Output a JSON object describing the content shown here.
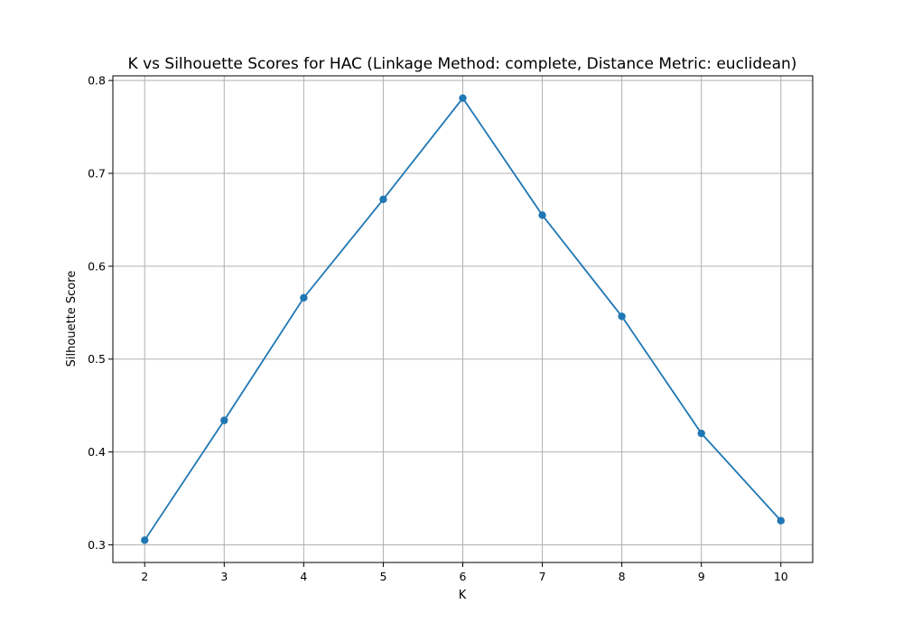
{
  "chart_data": {
    "type": "line",
    "title": "K vs Silhouette Scores for HAC (Linkage Method: complete, Distance Metric: euclidean)",
    "xlabel": "K",
    "ylabel": "Silhouette Score",
    "x": [
      2,
      3,
      4,
      5,
      6,
      7,
      8,
      9,
      10
    ],
    "series": [
      {
        "values": [
          0.305,
          0.434,
          0.566,
          0.672,
          0.781,
          0.655,
          0.546,
          0.42,
          0.326
        ],
        "color": "#1f77b4",
        "marker": "circle"
      }
    ],
    "xticks": [
      "2",
      "3",
      "4",
      "5",
      "6",
      "7",
      "8",
      "9",
      "10"
    ],
    "yticks": [
      "0.3",
      "0.4",
      "0.5",
      "0.6",
      "0.7",
      "0.8"
    ],
    "xlim": [
      1.6,
      10.4
    ],
    "ylim": [
      0.281,
      0.805
    ],
    "grid": true,
    "legend": "none"
  }
}
